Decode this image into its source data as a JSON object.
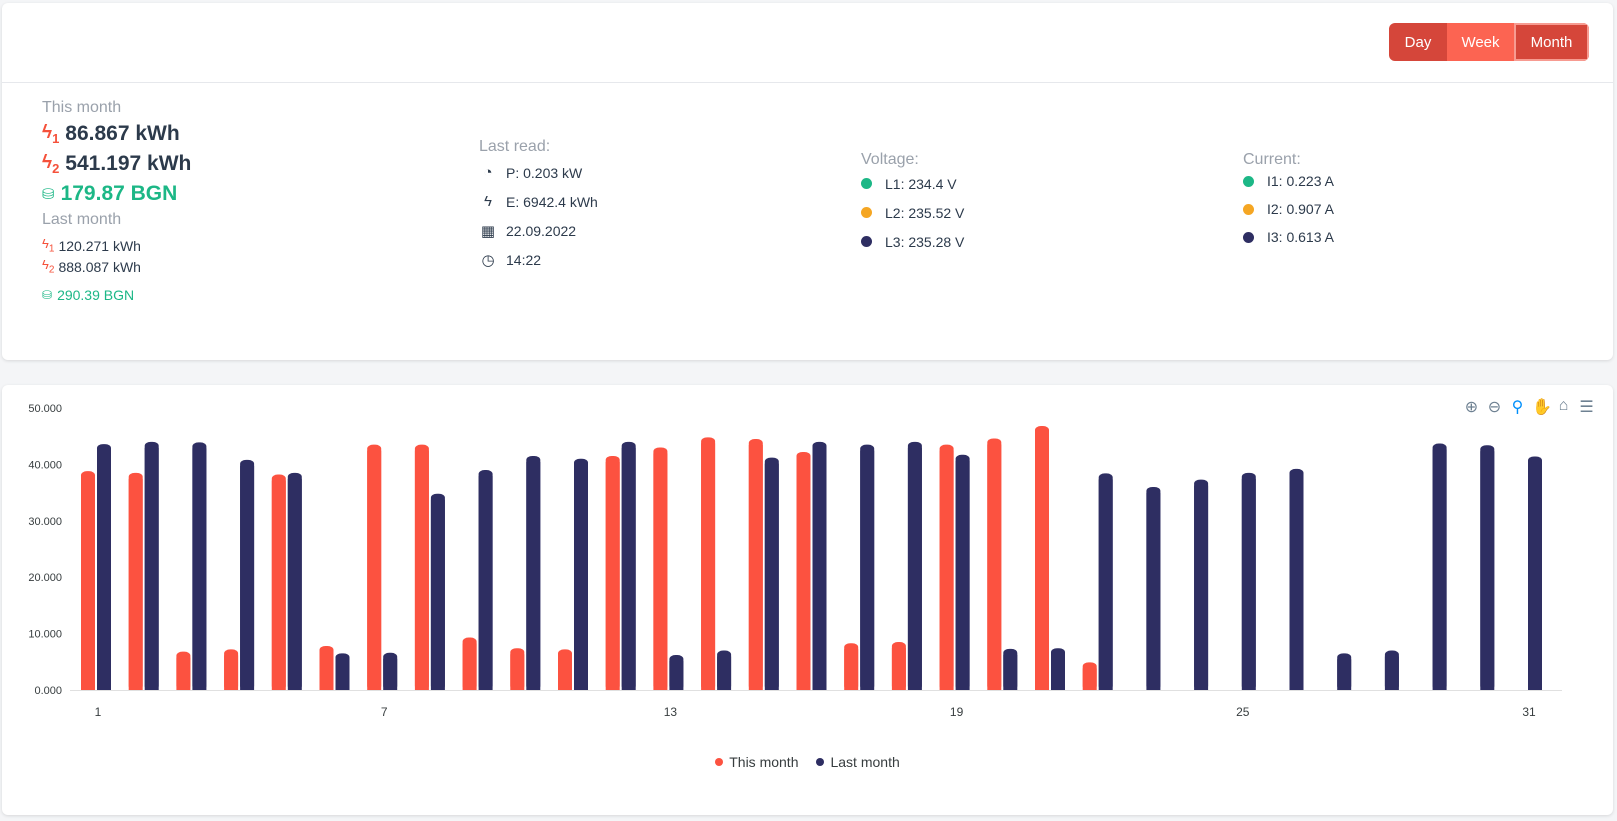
{
  "header": {
    "buttons": [
      {
        "label": "Day",
        "color": "#d5463a"
      },
      {
        "label": "Week",
        "color": "#fc6452"
      },
      {
        "label": "Month",
        "color": "#d5463a"
      }
    ]
  },
  "summary": {
    "this_month": {
      "label": "This month",
      "t1": "86.867 kWh",
      "t2": "541.197 kWh",
      "cost": "179.87 BGN",
      "t1_mark": "1",
      "t2_mark": "2"
    },
    "last_month": {
      "label": "Last month",
      "t1": "120.271 kWh",
      "t2": "888.087 kWh",
      "cost": "290.39 BGN",
      "t1_mark": "1",
      "t2_mark": "2"
    }
  },
  "last_read": {
    "label": "Last read:",
    "power": "P: 0.203 kW",
    "energy": "E: 6942.4 kWh",
    "date": "22.09.2022",
    "time": "14:22"
  },
  "voltage": {
    "label": "Voltage:",
    "items": [
      {
        "text": "L1: 234.4 V",
        "color": "#1cb786"
      },
      {
        "text": "L2: 235.52 V",
        "color": "#f5a623"
      },
      {
        "text": "L3: 235.28 V",
        "color": "#2e2e62"
      }
    ]
  },
  "current": {
    "label": "Current:",
    "items": [
      {
        "text": "I1: 0.223 A",
        "color": "#1cb786"
      },
      {
        "text": "I2: 0.907 A",
        "color": "#f5a623"
      },
      {
        "text": "I3: 0.613 A",
        "color": "#2e2e62"
      }
    ]
  },
  "colors": {
    "accent": "#f5513b",
    "positive": "#1cb786",
    "dark": "#2e2e62"
  },
  "chart_data": {
    "type": "bar",
    "categories": [
      1,
      2,
      3,
      4,
      5,
      6,
      7,
      8,
      9,
      10,
      11,
      12,
      13,
      14,
      15,
      16,
      17,
      18,
      19,
      20,
      21,
      22,
      23,
      24,
      25,
      26,
      27,
      28,
      29,
      30,
      31
    ],
    "x_tick_labels": [
      "1",
      "7",
      "13",
      "19",
      "25",
      "31"
    ],
    "y_tick_labels": [
      "0.000",
      "10.000",
      "20.000",
      "30.000",
      "40.000",
      "50.000"
    ],
    "ylim": [
      0,
      50
    ],
    "grid": false,
    "legend_position": "bottom",
    "series": [
      {
        "name": "This month",
        "color": "#fc5240",
        "values": [
          38.8,
          38.5,
          6.8,
          7.2,
          38.2,
          7.8,
          43.5,
          43.5,
          9.3,
          7.4,
          7.2,
          41.5,
          43.0,
          44.8,
          44.5,
          42.2,
          8.3,
          8.5,
          43.5,
          44.6,
          46.8,
          4.9,
          null,
          null,
          null,
          null,
          null,
          null,
          null,
          null,
          null
        ]
      },
      {
        "name": "Last month",
        "color": "#2e2e62",
        "values": [
          43.6,
          44.0,
          43.9,
          40.8,
          38.5,
          6.5,
          6.6,
          34.8,
          39.0,
          41.5,
          41.0,
          44.0,
          6.2,
          7.0,
          41.2,
          44.0,
          43.5,
          44.0,
          41.7,
          7.3,
          7.4,
          38.4,
          36.0,
          37.3,
          38.5,
          39.2,
          6.5,
          7.0,
          43.7,
          43.4,
          41.4
        ]
      }
    ]
  }
}
